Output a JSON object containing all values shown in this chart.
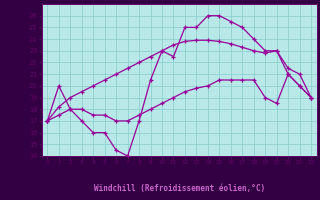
{
  "xlabel": "Windchill (Refroidissement éolien,°C)",
  "bg_color": "#b8e8e8",
  "xlabel_bg": "#330044",
  "grid_color": "#88cccc",
  "line_color": "#990099",
  "spine_color": "#660066",
  "tick_color": "#660066",
  "xlim": [
    -0.5,
    23.5
  ],
  "ylim": [
    14,
    27
  ],
  "xticks": [
    0,
    1,
    2,
    3,
    4,
    5,
    6,
    7,
    8,
    9,
    10,
    11,
    12,
    13,
    14,
    15,
    16,
    17,
    18,
    19,
    20,
    21,
    22,
    23
  ],
  "yticks": [
    14,
    15,
    16,
    17,
    18,
    19,
    20,
    21,
    22,
    23,
    24,
    25,
    26
  ],
  "line1_x": [
    0,
    1,
    2,
    3,
    4,
    5,
    6,
    7,
    8,
    9,
    10,
    11,
    12,
    13,
    14,
    15,
    16,
    17,
    18,
    19,
    20,
    21,
    22,
    23
  ],
  "line1_y": [
    17,
    20,
    18,
    17,
    16,
    16,
    14.5,
    14,
    17,
    20.5,
    23,
    22.5,
    25,
    25,
    26,
    26,
    25.5,
    25,
    24,
    23,
    23,
    21,
    20,
    19
  ],
  "line2_x": [
    0,
    1,
    2,
    3,
    4,
    5,
    6,
    7,
    8,
    9,
    10,
    11,
    12,
    13,
    14,
    15,
    16,
    17,
    18,
    19,
    20,
    21,
    22,
    23
  ],
  "line2_y": [
    17,
    18.2,
    19,
    19.5,
    20,
    20.5,
    21,
    21.5,
    22,
    22.5,
    23,
    23.5,
    23.8,
    23.9,
    23.9,
    23.8,
    23.6,
    23.3,
    23,
    22.8,
    23,
    21.5,
    21,
    19
  ],
  "line3_x": [
    0,
    1,
    2,
    3,
    4,
    5,
    6,
    7,
    8,
    9,
    10,
    11,
    12,
    13,
    14,
    15,
    16,
    17,
    18,
    19,
    20,
    21,
    22,
    23
  ],
  "line3_y": [
    17,
    17.5,
    18,
    18,
    17.5,
    17.5,
    17,
    17,
    17.5,
    18,
    18.5,
    19,
    19.5,
    19.8,
    20,
    20.5,
    20.5,
    20.5,
    20.5,
    19,
    18.5,
    21,
    20,
    19
  ]
}
